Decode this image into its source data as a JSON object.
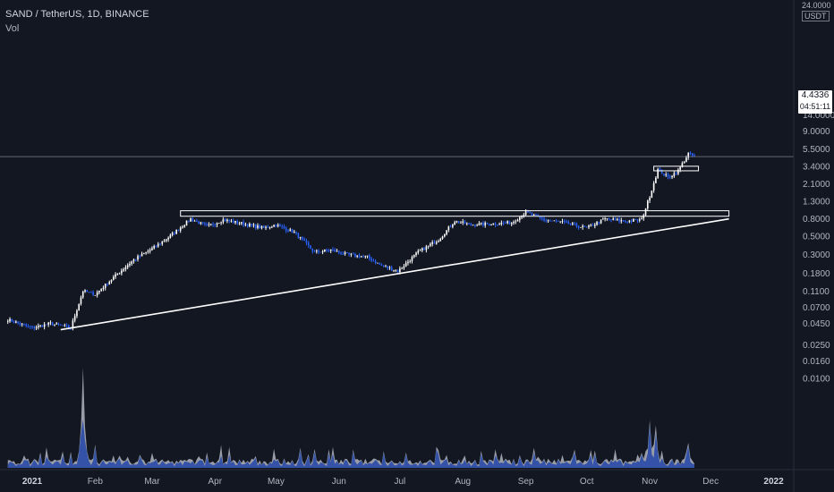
{
  "legend": {
    "symbol_line": "SAND / TetherUS, 1D, BINANCE",
    "indicator": "Vol"
  },
  "price_axis": {
    "unit": "USDT",
    "top_label": "24.0000"
  },
  "last_price": {
    "value": "4.4336",
    "countdown": "04:51:11"
  },
  "colors": {
    "background": "#131722",
    "up_candle": "#ffffff",
    "down_candle": "#2962ff",
    "volume_up": "#b2b5be",
    "volume_down": "#2e4fa8",
    "trendline": "#ffffff",
    "grid": "none"
  },
  "chart_data": {
    "type": "candlestick",
    "symbol": "SAND / TetherUS",
    "interval": "1D",
    "exchange": "BINANCE",
    "y_scale": "log",
    "ylim": [
      0.006,
      24
    ],
    "y_ticks": [
      "24.0000",
      "14.0000",
      "9.0000",
      "5.5000",
      "3.4000",
      "2.1000",
      "1.3000",
      "0.8000",
      "0.5000",
      "0.3000",
      "0.1800",
      "0.1100",
      "0.0700",
      "0.0450",
      "0.0250",
      "0.0160",
      "0.0100"
    ],
    "x_ticks": [
      "2021",
      "Feb",
      "Mar",
      "Apr",
      "May",
      "Jun",
      "Jul",
      "Aug",
      "Sep",
      "Oct",
      "Nov",
      "Dec",
      "2022"
    ],
    "grid": false,
    "series": [
      {
        "name": "SAND / TetherUS",
        "type": "close",
        "x": [
          "2020-12-20",
          "2021-01-01",
          "2021-01-10",
          "2021-01-20",
          "2021-01-26",
          "2021-02-01",
          "2021-02-10",
          "2021-02-20",
          "2021-03-01",
          "2021-03-10",
          "2021-03-20",
          "2021-03-28",
          "2021-04-05",
          "2021-04-15",
          "2021-04-25",
          "2021-05-01",
          "2021-05-10",
          "2021-05-20",
          "2021-05-28",
          "2021-06-05",
          "2021-06-15",
          "2021-06-22",
          "2021-06-30",
          "2021-07-10",
          "2021-07-20",
          "2021-07-28",
          "2021-08-05",
          "2021-08-15",
          "2021-08-25",
          "2021-09-01",
          "2021-09-10",
          "2021-09-20",
          "2021-10-01",
          "2021-10-10",
          "2021-10-20",
          "2021-10-28",
          "2021-11-01",
          "2021-11-05",
          "2021-11-10",
          "2021-11-15",
          "2021-11-20",
          "2021-11-23"
        ],
        "values": [
          0.05,
          0.04,
          0.045,
          0.04,
          0.11,
          0.1,
          0.16,
          0.26,
          0.35,
          0.5,
          0.8,
          0.65,
          0.78,
          0.7,
          0.62,
          0.68,
          0.55,
          0.32,
          0.34,
          0.3,
          0.28,
          0.22,
          0.19,
          0.32,
          0.45,
          0.75,
          0.68,
          0.7,
          0.72,
          0.95,
          0.78,
          0.72,
          0.62,
          0.8,
          0.75,
          0.78,
          1.5,
          3.1,
          2.5,
          3.0,
          4.8,
          4.43
        ]
      },
      {
        "name": "Vol",
        "type": "volume",
        "x": [
          "2021-01-26",
          "2021-03-01",
          "2021-05-20",
          "2021-07-20",
          "2021-08-20",
          "2021-09-05",
          "2021-11-01",
          "2021-11-04",
          "2021-11-20"
        ],
        "values": [
          8.0,
          1.2,
          1.5,
          1.4,
          1.2,
          1.6,
          3.8,
          3.4,
          2.0
        ]
      }
    ],
    "annotations": [
      {
        "type": "trendline",
        "from": [
          "2021-01-15",
          0.038
        ],
        "to": [
          "2021-12-10",
          0.8
        ]
      },
      {
        "type": "rectangle",
        "x": [
          "2021-03-15",
          "2021-12-10"
        ],
        "y": [
          0.86,
          1.0
        ]
      },
      {
        "type": "rectangle",
        "x": [
          "2021-11-03",
          "2021-11-25"
        ],
        "y": [
          3.0,
          3.4
        ]
      },
      {
        "type": "horizontal-line",
        "y": 4.4336
      }
    ]
  }
}
